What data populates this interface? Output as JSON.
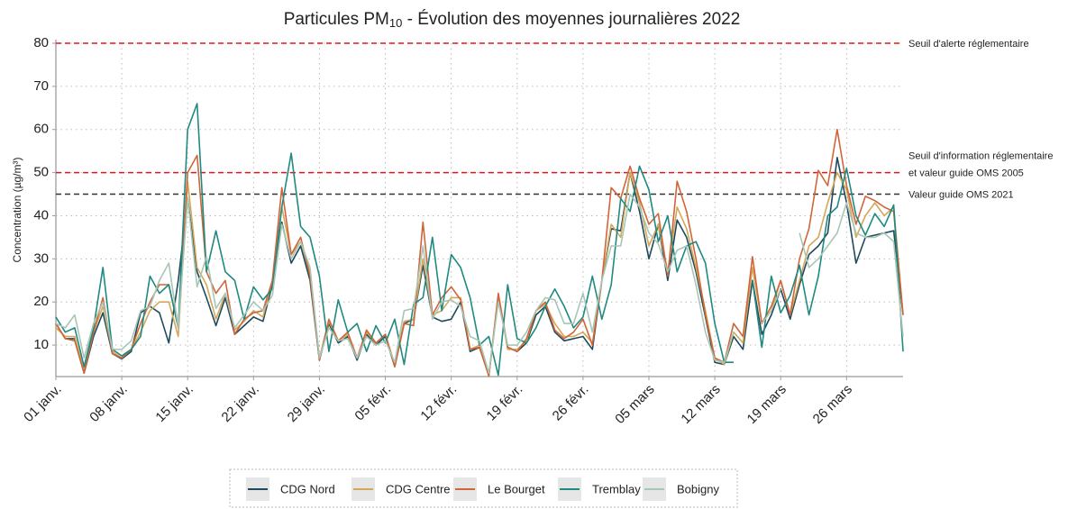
{
  "chart_data": {
    "type": "line",
    "title": [
      "Particules PM",
      "10",
      " - Évolution des moyennes journalières 2022"
    ],
    "y_label": "Concentration (µg/m³)",
    "x": [
      0,
      1,
      2,
      3,
      4,
      5,
      6,
      7,
      8,
      9,
      10,
      11,
      12,
      13,
      14,
      15,
      16,
      17,
      18,
      19,
      20,
      21,
      22,
      23,
      24,
      25,
      26,
      27,
      28,
      29,
      30,
      31,
      32,
      33,
      34,
      35,
      36,
      37,
      38,
      39,
      40,
      41,
      42,
      43,
      44,
      45,
      46,
      47,
      48,
      49,
      50,
      51,
      52,
      53,
      54,
      55,
      56,
      57,
      58,
      59,
      60,
      61,
      62,
      63,
      64,
      65,
      66,
      67,
      68,
      69,
      70,
      71,
      72,
      73,
      74,
      75,
      76,
      77,
      78,
      79,
      80,
      81,
      82,
      83,
      84,
      85,
      86,
      87,
      88,
      89,
      90
    ],
    "xlim": [
      0,
      90
    ],
    "xticks": [
      {
        "value": 0,
        "label": "01 janv."
      },
      {
        "value": 7,
        "label": "08 janv."
      },
      {
        "value": 14,
        "label": "15 janv."
      },
      {
        "value": 21,
        "label": "22 janv."
      },
      {
        "value": 28,
        "label": "29 janv."
      },
      {
        "value": 35,
        "label": "05 févr."
      },
      {
        "value": 42,
        "label": "12 févr."
      },
      {
        "value": 49,
        "label": "19 févr."
      },
      {
        "value": 56,
        "label": "26 févr."
      },
      {
        "value": 63,
        "label": "05 mars"
      },
      {
        "value": 70,
        "label": "12 mars"
      },
      {
        "value": 77,
        "label": "19 mars"
      },
      {
        "value": 84,
        "label": "26 mars"
      }
    ],
    "ylim": [
      2.7,
      80
    ],
    "yticks": [
      10,
      20,
      30,
      40,
      50,
      60,
      70,
      80
    ],
    "grid": true,
    "reference_lines": [
      {
        "value": 80,
        "color": "#e8141c",
        "labels": [
          {
            "text": "Seuil d'alerte réglementaire",
            "color": "#e8141c"
          }
        ]
      },
      {
        "value": 50,
        "color": "#e8141c",
        "labels": [
          {
            "text": "Seuil d'information réglementaire",
            "color": "#e8141c"
          },
          {
            "text": "et valeur guide OMS 2005",
            "color": "#333333"
          }
        ]
      },
      {
        "value": 45,
        "color": "#333333",
        "labels": [
          {
            "text": "Valeur guide OMS 2021",
            "color": "#333333"
          }
        ]
      }
    ],
    "series": [
      {
        "name": "CDG Nord",
        "color": "#1d4a5c",
        "values": [
          15,
          11.5,
          11.5,
          3.5,
          12,
          17.5,
          8,
          6.8,
          8.5,
          17.5,
          19,
          17.5,
          10.5,
          25,
          44,
          27,
          21,
          14.5,
          21,
          12.5,
          14.5,
          16.5,
          15.5,
          24,
          38.5,
          29,
          33,
          25,
          6.5,
          15,
          10.5,
          12,
          6.5,
          12.5,
          10,
          12,
          5,
          15,
          16,
          28.5,
          16.5,
          15.5,
          16,
          20,
          8.5,
          9.5,
          3,
          21,
          9.5,
          8.5,
          10.5,
          17,
          19,
          13,
          11,
          11.5,
          12,
          9,
          25,
          37,
          36.5,
          50,
          41,
          30,
          38,
          25,
          39,
          35,
          27,
          16.5,
          6,
          5.5,
          12,
          9,
          25,
          12.5,
          17,
          23,
          16,
          24,
          31,
          33,
          36,
          53.5,
          43,
          29,
          35,
          35.5,
          36,
          36.5,
          17
        ]
      },
      {
        "name": "CDG Centre",
        "color": "#d4a85a",
        "values": [
          14,
          12,
          12,
          4,
          13,
          19,
          8.5,
          7,
          9,
          13,
          18,
          20,
          20,
          12,
          48,
          28,
          24,
          16,
          22,
          13.5,
          15.5,
          18,
          16.5,
          25,
          42,
          31,
          34,
          27,
          7,
          15.5,
          11,
          12.5,
          7,
          13,
          10.5,
          12.5,
          5.5,
          15.5,
          16,
          30,
          17,
          18,
          21,
          21,
          9,
          10,
          3,
          21.5,
          9,
          9,
          11,
          18,
          19.5,
          15,
          12,
          12,
          13,
          10.5,
          25,
          38,
          35,
          50,
          43,
          33,
          38,
          27,
          42,
          37,
          28,
          18,
          7,
          5.5,
          13,
          10.5,
          28,
          15,
          18,
          25,
          17,
          25,
          33,
          35,
          43,
          50,
          46,
          35,
          40,
          43,
          40,
          42,
          17
        ]
      },
      {
        "name": "Le Bourget",
        "color": "#d0653a",
        "values": [
          15,
          11.5,
          11,
          3.5,
          13,
          21,
          8,
          7,
          9,
          15,
          20,
          24,
          24,
          14,
          50,
          54,
          27,
          22,
          25,
          12.5,
          16,
          17.5,
          18,
          25,
          46.5,
          31,
          35,
          26,
          6.5,
          16,
          11,
          13,
          7,
          13.5,
          10.5,
          12.5,
          5,
          15,
          14.5,
          38.5,
          17,
          21,
          23.5,
          20.5,
          9,
          9.5,
          2.8,
          22,
          9.5,
          8.5,
          11.5,
          18,
          20,
          13.5,
          11.5,
          13,
          16,
          10,
          25,
          46.5,
          44,
          51.5,
          44,
          38,
          40.5,
          26,
          48,
          41,
          30,
          17,
          7,
          6,
          15,
          12,
          30.5,
          15,
          19,
          25,
          17,
          30,
          37,
          50.5,
          47,
          60,
          47,
          38,
          44.5,
          43.5,
          42,
          41,
          17
        ]
      },
      {
        "name": "Tremblay",
        "color": "#1e8a80",
        "values": [
          16.5,
          13,
          14,
          5,
          14,
          28,
          9,
          7.5,
          9,
          12,
          26,
          22,
          24,
          14,
          60,
          66,
          27,
          36.5,
          27,
          25,
          16,
          23.5,
          20.5,
          23,
          42,
          54.5,
          37.5,
          35,
          26,
          8.5,
          20.5,
          13,
          15,
          8.5,
          14.5,
          10.5,
          16,
          5.5,
          19.5,
          21,
          35,
          18,
          31,
          28,
          21,
          10,
          12,
          3,
          24,
          11.5,
          10.5,
          14,
          19,
          23,
          19,
          14,
          16.5,
          26,
          16,
          24,
          44,
          41,
          51.5,
          46,
          34,
          40,
          27,
          33,
          34,
          29,
          15,
          6,
          6,
          null,
          25,
          9.5,
          26,
          17.5,
          21.5,
          28.5,
          17,
          26,
          40,
          42,
          51,
          40,
          35.5,
          40.5,
          37.5,
          42.5,
          8.5
        ]
      },
      {
        "name": "Bobigny",
        "color": "#a8c6b5",
        "values": [
          15,
          14,
          17,
          7,
          15,
          20,
          9,
          9,
          11,
          18,
          19,
          25,
          29,
          14,
          44,
          23.5,
          30.5,
          18.5,
          22,
          14,
          17,
          20,
          18,
          21.5,
          38,
          30,
          34,
          28,
          7,
          14,
          11,
          11.5,
          7,
          12,
          10,
          11,
          6,
          18,
          18.5,
          33,
          16,
          20,
          20.5,
          19,
          12,
          11,
          3.5,
          20,
          10,
          10,
          13,
          18,
          21,
          20.5,
          15,
          15,
          22,
          13,
          25,
          33,
          33,
          45,
          42,
          36,
          33.5,
          27,
          32,
          33,
          24,
          13,
          6.5,
          6,
          13,
          null,
          null,
          15,
          18,
          23,
          null,
          36,
          28,
          30,
          33,
          36,
          43,
          36,
          35,
          35,
          36,
          34,
          12
        ]
      }
    ]
  }
}
